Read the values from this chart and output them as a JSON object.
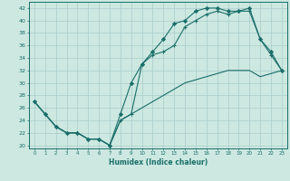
{
  "xlabel": "Humidex (Indice chaleur)",
  "background_color": "#cce8e0",
  "grid_color": "#aacccc",
  "line_color": "#1a6e6a",
  "xlim": [
    -0.5,
    23.5
  ],
  "ylim": [
    19.5,
    43
  ],
  "yticks": [
    20,
    22,
    24,
    26,
    28,
    30,
    32,
    34,
    36,
    38,
    40,
    42
  ],
  "xticks": [
    0,
    1,
    2,
    3,
    4,
    5,
    6,
    7,
    8,
    9,
    10,
    11,
    12,
    13,
    14,
    15,
    16,
    17,
    18,
    19,
    20,
    21,
    22,
    23
  ],
  "line1_x": [
    0,
    1,
    2,
    3,
    4,
    5,
    6,
    7,
    8,
    9,
    10,
    11,
    12,
    13,
    14,
    15,
    16,
    17,
    18,
    19,
    20,
    21,
    22,
    23
  ],
  "line1_y": [
    27,
    25,
    23,
    22,
    22,
    21,
    21,
    20,
    25,
    30,
    33,
    35,
    37,
    39.5,
    40,
    41.5,
    42,
    42,
    41.5,
    41.5,
    42,
    37,
    35,
    32
  ],
  "line2_x": [
    0,
    1,
    2,
    3,
    4,
    5,
    6,
    7,
    8,
    9,
    10,
    11,
    12,
    13,
    14,
    15,
    16,
    17,
    18,
    19,
    20,
    21,
    22,
    23
  ],
  "line2_y": [
    27,
    25,
    23,
    22,
    22,
    21,
    21,
    20,
    24,
    25,
    33,
    34.5,
    35,
    36,
    39,
    40,
    41,
    41.5,
    41,
    41.5,
    41.5,
    37,
    34.5,
    32
  ],
  "line3_x": [
    0,
    1,
    2,
    3,
    4,
    5,
    6,
    7,
    8,
    9,
    10,
    11,
    12,
    13,
    14,
    15,
    16,
    17,
    18,
    19,
    20,
    21,
    22,
    23
  ],
  "line3_y": [
    27,
    25,
    23,
    22,
    22,
    21,
    21,
    20,
    24,
    25,
    26,
    27,
    28,
    29,
    30,
    30.5,
    31,
    31.5,
    32,
    32,
    32,
    31,
    31.5,
    32
  ]
}
